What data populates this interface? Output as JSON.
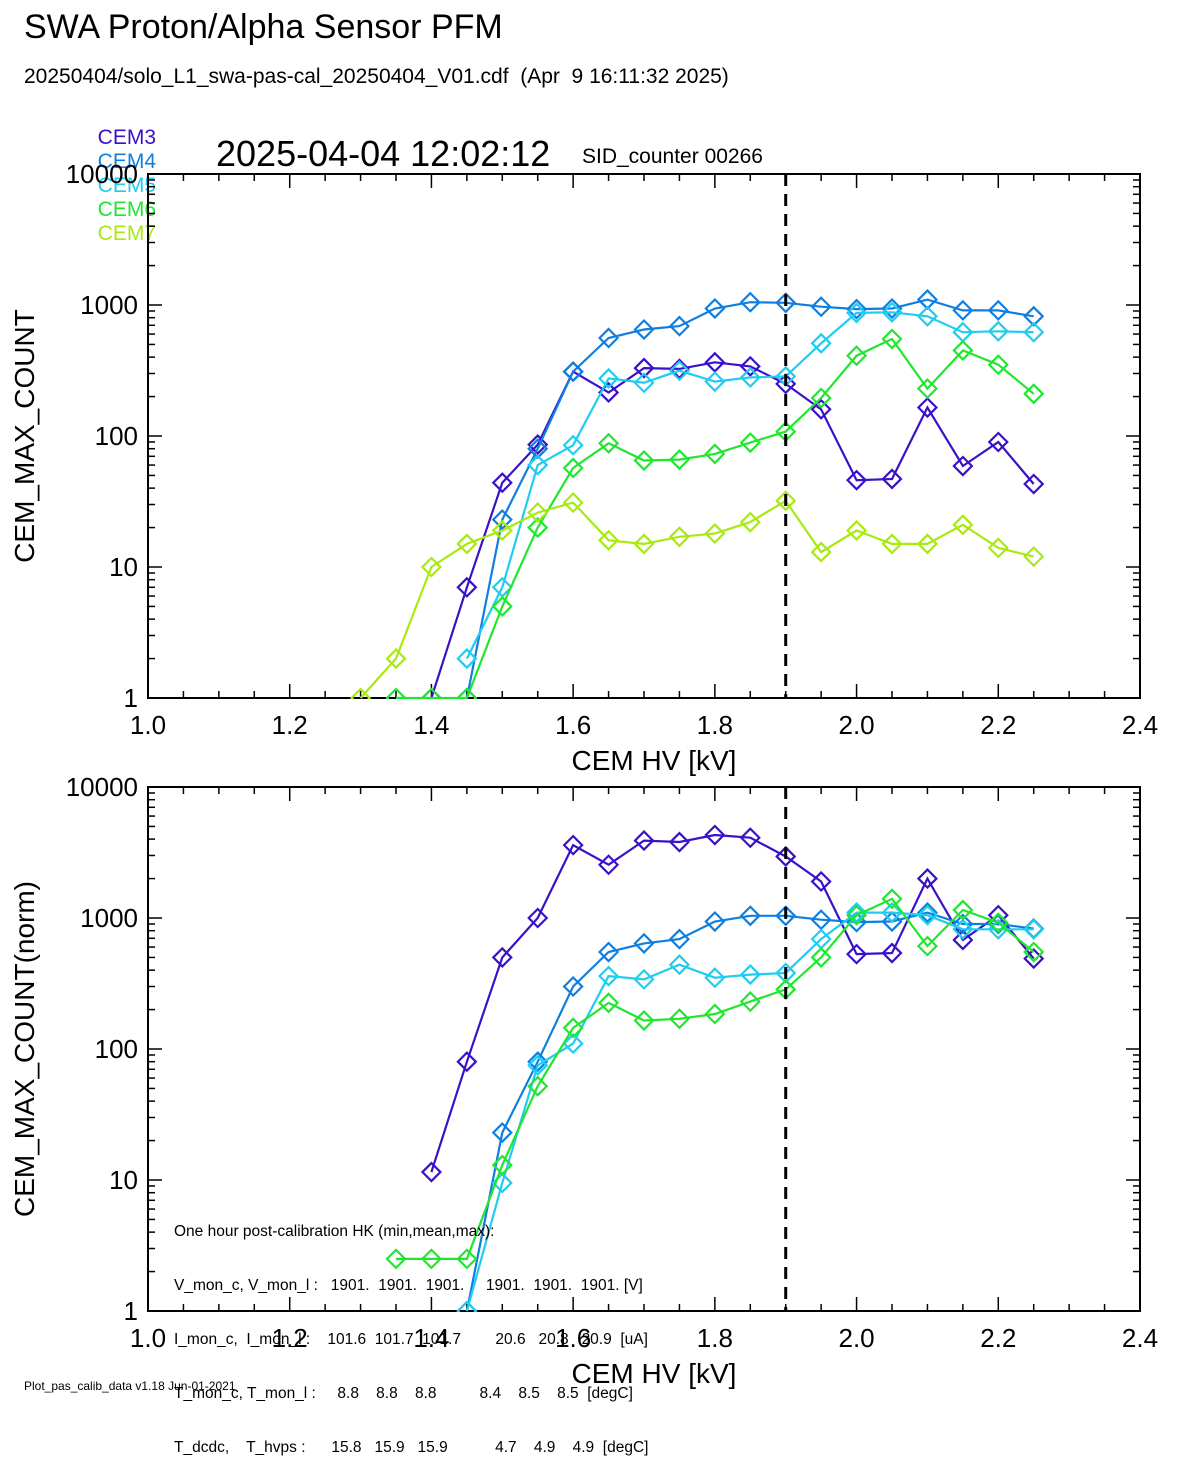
{
  "header": {
    "title": "SWA Proton/Alpha Sensor PFM",
    "subtitle": "20250404/solo_L1_swa-pas-cal_20250404_V01.cdf  (Apr  9 16:11:32 2025)",
    "timestamp": "2025-04-04 12:02:12",
    "sid_counter": "SID_counter 00266"
  },
  "footer": "Plot_pas_calib_data v1.18 Jun-01-2021",
  "colors": {
    "CEM3": "#3a10c8",
    "CEM4": "#0e7fe0",
    "CEM5": "#20ccf0",
    "CEM6": "#20e630",
    "CEM7": "#a8ea10"
  },
  "hk_box": [
    "One hour post-calibration HK (min,mean,max):",
    "V_mon_c, V_mon_l :   1901.  1901.  1901.     1901.  1901.  1901. [V]",
    "I_mon_c,  I_mon_l :    101.6  101.7  101.7        20.6   20.8   20.9  [uA]",
    "T_mon_c, T_mon_l :     8.8    8.8    8.8          8.4    8.5    8.5  [degC]",
    "T_dcdc,    T_hvps :      15.8   15.9   15.9           4.7    4.9    4.9  [degC]"
  ],
  "chart_data": [
    {
      "type": "line",
      "name": "top",
      "xlabel": "CEM HV [kV]",
      "ylabel": "CEM_MAX_COUNT",
      "xlim": [
        1.0,
        2.4
      ],
      "ylim": [
        1,
        10000
      ],
      "y_scale": "log",
      "xticks": [
        "1.0",
        "1.2",
        "1.4",
        "1.6",
        "1.8",
        "2.0",
        "2.2",
        "2.4"
      ],
      "yticks": [
        "1",
        "10",
        "100",
        "1000",
        "10000"
      ],
      "vline": 1.9,
      "marker": "diamond",
      "series": [
        {
          "name": "CEM3",
          "x": [
            1.4,
            1.45,
            1.5,
            1.55,
            1.6,
            1.65,
            1.7,
            1.75,
            1.8,
            1.85,
            1.9,
            1.95,
            2.0,
            2.05,
            2.1,
            2.15,
            2.2,
            2.25
          ],
          "y": [
            1,
            7,
            44,
            86,
            310,
            215,
            330,
            325,
            365,
            340,
            250,
            160,
            46,
            47,
            165,
            59,
            90,
            43
          ]
        },
        {
          "name": "CEM4",
          "x": [
            1.45,
            1.5,
            1.55,
            1.6,
            1.65,
            1.7,
            1.75,
            1.8,
            1.85,
            1.9,
            1.95,
            2.0,
            2.05,
            2.1,
            2.15,
            2.2,
            2.25
          ],
          "y": [
            1,
            23,
            80,
            310,
            560,
            650,
            690,
            940,
            1050,
            1040,
            970,
            930,
            940,
            1100,
            910,
            910,
            820
          ]
        },
        {
          "name": "CEM5",
          "x": [
            1.45,
            1.5,
            1.55,
            1.6,
            1.65,
            1.7,
            1.75,
            1.8,
            1.85,
            1.9,
            1.95,
            2.0,
            2.05,
            2.1,
            2.15,
            2.2,
            2.25
          ],
          "y": [
            2,
            7,
            60,
            85,
            275,
            255,
            315,
            260,
            280,
            285,
            510,
            870,
            880,
            820,
            620,
            630,
            620
          ]
        },
        {
          "name": "CEM6",
          "x": [
            1.35,
            1.4,
            1.45,
            1.5,
            1.55,
            1.6,
            1.65,
            1.7,
            1.75,
            1.8,
            1.85,
            1.9,
            1.95,
            2.0,
            2.05,
            2.1,
            2.15,
            2.2,
            2.25
          ],
          "y": [
            1,
            1,
            1,
            5,
            20,
            57,
            88,
            65,
            66,
            73,
            89,
            108,
            195,
            410,
            550,
            230,
            450,
            350,
            210
          ]
        },
        {
          "name": "CEM7",
          "x": [
            1.3,
            1.35,
            1.4,
            1.45,
            1.5,
            1.55,
            1.6,
            1.65,
            1.7,
            1.75,
            1.8,
            1.85,
            1.9,
            1.95,
            2.0,
            2.05,
            2.1,
            2.15,
            2.2,
            2.25
          ],
          "y": [
            1,
            2,
            10,
            15,
            19,
            26,
            31,
            16,
            15,
            17,
            18,
            22,
            32,
            13,
            19,
            15,
            15,
            21,
            14,
            12
          ]
        }
      ]
    },
    {
      "type": "line",
      "name": "bottom",
      "xlabel": "CEM HV [kV]",
      "ylabel": "CEM_MAX_COUNT(norm)",
      "xlim": [
        1.0,
        2.4
      ],
      "ylim": [
        1,
        10000
      ],
      "y_scale": "log",
      "xticks": [
        "1.0",
        "1.2",
        "1.4",
        "1.6",
        "1.8",
        "2.0",
        "2.2",
        "2.4"
      ],
      "yticks": [
        "1",
        "10",
        "100",
        "1000",
        "10000"
      ],
      "vline": 1.9,
      "marker": "diamond",
      "series": [
        {
          "name": "CEM3",
          "x": [
            1.4,
            1.45,
            1.5,
            1.55,
            1.6,
            1.65,
            1.7,
            1.75,
            1.8,
            1.85,
            1.9,
            1.95,
            2.0,
            2.05,
            2.1,
            2.15,
            2.2,
            2.25
          ],
          "y": [
            11.5,
            80,
            500,
            1000,
            3600,
            2550,
            3900,
            3800,
            4300,
            4100,
            2950,
            1900,
            530,
            540,
            2000,
            680,
            1050,
            490
          ]
        },
        {
          "name": "CEM4",
          "x": [
            1.45,
            1.5,
            1.55,
            1.6,
            1.65,
            1.7,
            1.75,
            1.8,
            1.85,
            1.9,
            1.95,
            2.0,
            2.05,
            2.1,
            2.15,
            2.2,
            2.25
          ],
          "y": [
            1,
            23,
            80,
            300,
            550,
            640,
            690,
            940,
            1040,
            1040,
            970,
            930,
            940,
            1100,
            900,
            900,
            830
          ]
        },
        {
          "name": "CEM5",
          "x": [
            1.45,
            1.5,
            1.55,
            1.6,
            1.65,
            1.7,
            1.75,
            1.8,
            1.85,
            1.9,
            1.95,
            2.0,
            2.05,
            2.1,
            2.15,
            2.2,
            2.25
          ],
          "y": [
            1,
            9.5,
            75,
            110,
            360,
            340,
            440,
            350,
            370,
            380,
            690,
            1100,
            1100,
            1050,
            820,
            820,
            820
          ]
        },
        {
          "name": "CEM6",
          "x": [
            1.35,
            1.4,
            1.45,
            1.5,
            1.55,
            1.6,
            1.65,
            1.7,
            1.75,
            1.8,
            1.85,
            1.9,
            1.95,
            2.0,
            2.05,
            2.1,
            2.15,
            2.2,
            2.25
          ],
          "y": [
            2.5,
            2.5,
            2.5,
            13,
            52,
            145,
            225,
            165,
            170,
            185,
            230,
            285,
            500,
            1050,
            1400,
            610,
            1150,
            920,
            550
          ]
        }
      ]
    }
  ]
}
